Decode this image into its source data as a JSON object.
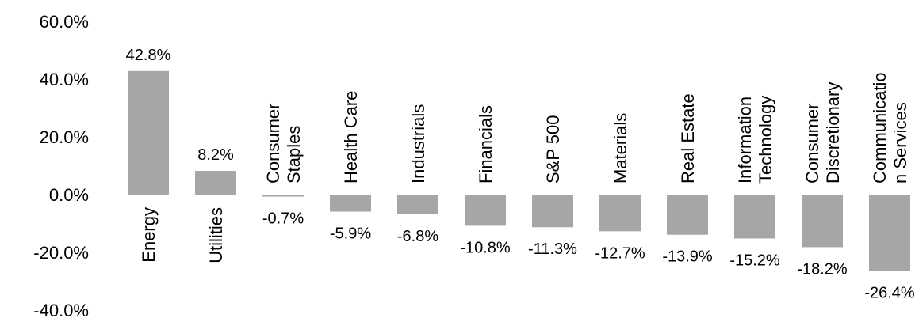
{
  "chart_data": {
    "type": "bar",
    "title": "",
    "xlabel": "",
    "ylabel": "",
    "ylim": [
      -40,
      60
    ],
    "yticks": [
      "60.0%",
      "40.0%",
      "20.0%",
      "0.0%",
      "-20.0%",
      "-40.0%"
    ],
    "ytick_values": [
      60,
      40,
      20,
      0,
      -20,
      -40
    ],
    "grid": false,
    "legend": "none",
    "bar_color": "#a6a6a6",
    "categories": [
      [
        "Energy"
      ],
      [
        "Utilities"
      ],
      [
        "Consumer",
        "Staples"
      ],
      [
        "Health Care"
      ],
      [
        "Industrials"
      ],
      [
        "Financials"
      ],
      [
        "S&P 500"
      ],
      [
        "Materials"
      ],
      [
        "Real Estate"
      ],
      [
        "Information",
        "Technology"
      ],
      [
        "Consumer",
        "Discretionary"
      ],
      [
        "Communicatio",
        "n Services"
      ]
    ],
    "values": [
      42.8,
      8.2,
      -0.7,
      -5.9,
      -6.8,
      -10.8,
      -11.3,
      -12.7,
      -13.9,
      -15.2,
      -18.2,
      -26.4
    ],
    "value_labels": [
      "42.8%",
      "8.2%",
      "-0.7%",
      "-5.9%",
      "-6.8%",
      "-10.8%",
      "-11.3%",
      "-12.7%",
      "-13.9%",
      "-15.2%",
      "-18.2%",
      "-26.4%"
    ]
  }
}
